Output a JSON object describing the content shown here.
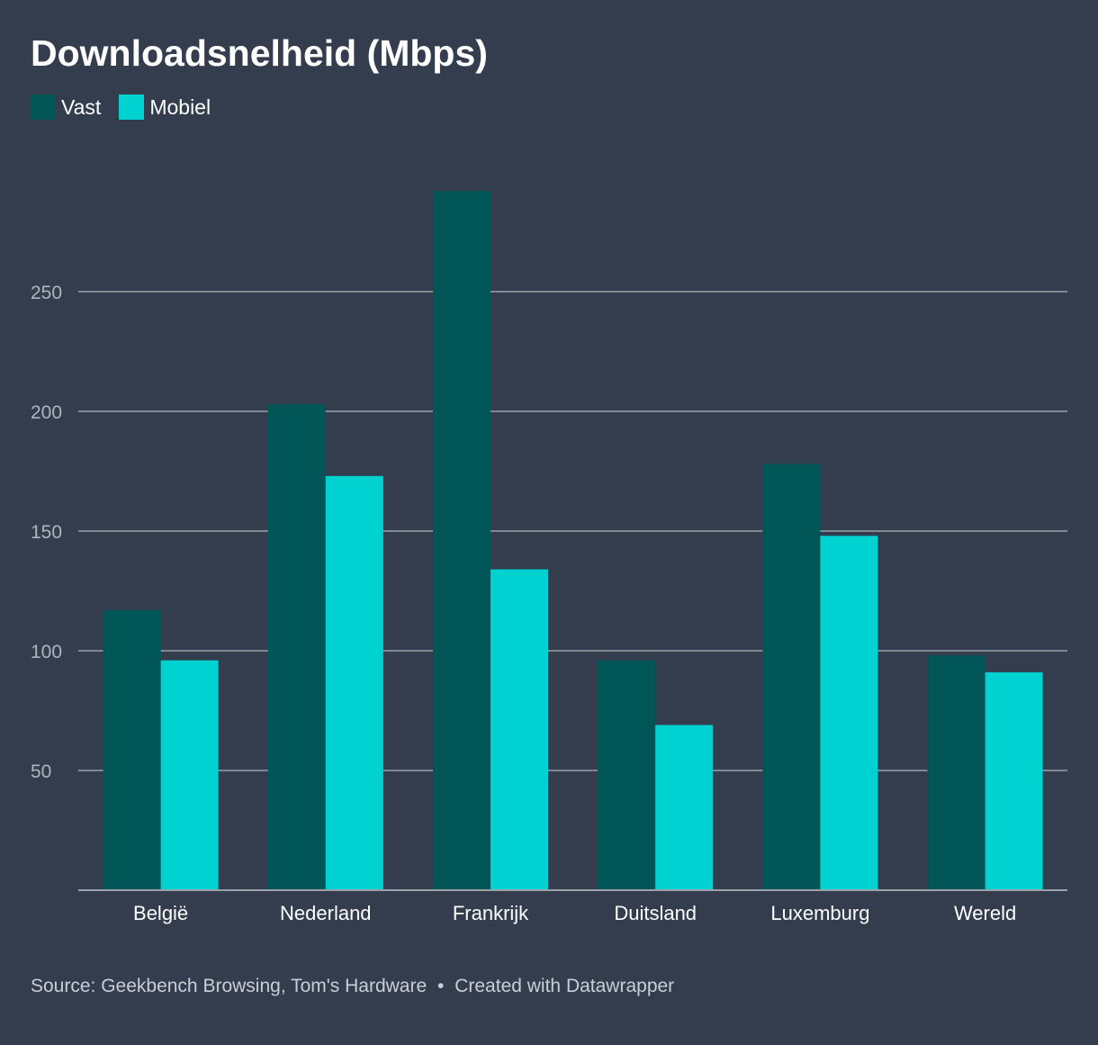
{
  "colors": {
    "background": "#333d4e",
    "vast": "#005557",
    "mobiel": "#00d1d1",
    "grid": "#9aa1ab",
    "tick_text": "#aeb4bd",
    "category_text": "#ffffff"
  },
  "chart_data": {
    "type": "bar",
    "title": "Downloadsnelheid (Mbps)",
    "xlabel": "",
    "ylabel": "",
    "ylim": [
      0,
      300
    ],
    "yticks": [
      50,
      100,
      150,
      200,
      250
    ],
    "grid": true,
    "legend_position": "top-left",
    "categories": [
      "België",
      "Nederland",
      "Frankrijk",
      "Duitsland",
      "Luxemburg",
      "Wereld"
    ],
    "series": [
      {
        "name": "Vast",
        "values": [
          117,
          203,
          292,
          96,
          178,
          98
        ]
      },
      {
        "name": "Mobiel",
        "values": [
          96,
          173,
          134,
          69,
          148,
          91
        ]
      }
    ]
  },
  "footer": {
    "source": "Source: Geekbench Browsing, Tom's Hardware",
    "separator": "•",
    "created": "Created with Datawrapper"
  }
}
